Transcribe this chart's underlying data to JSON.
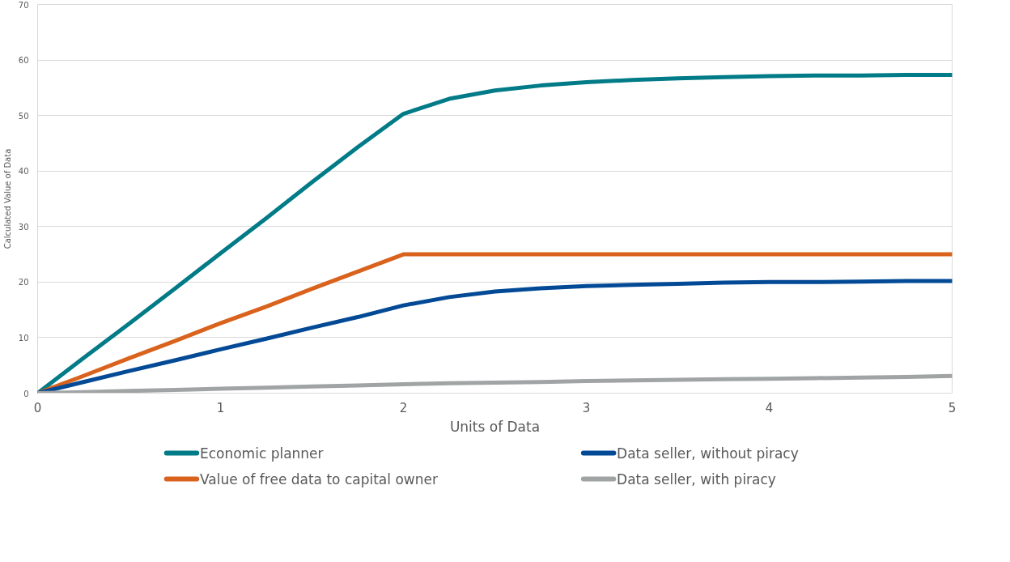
{
  "chart_data": {
    "type": "line",
    "xlabel": "Units of Data",
    "ylabel": "Calculated Value of Data",
    "x": [
      0,
      0.25,
      0.5,
      0.75,
      1,
      1.25,
      1.5,
      1.75,
      2,
      2.25,
      2.5,
      2.75,
      3,
      3.25,
      3.5,
      3.75,
      4,
      4.25,
      4.5,
      4.75,
      5
    ],
    "xlim": [
      0,
      5
    ],
    "xticks": [
      0,
      1,
      2,
      3,
      4,
      5
    ],
    "ylim": [
      0,
      70
    ],
    "yticks": [
      0,
      10,
      20,
      30,
      40,
      50,
      60,
      70
    ],
    "grid": "y",
    "legend": "bottom",
    "line_style": "solid",
    "series": [
      {
        "name": "Economic planner",
        "color": "#007b87",
        "values": [
          0,
          6.3,
          12.5,
          18.8,
          25.2,
          31.5,
          38,
          44.3,
          50.3,
          53,
          54.5,
          55.4,
          56,
          56.4,
          56.7,
          56.9,
          57.1,
          57.2,
          57.2,
          57.3,
          57.3
        ]
      },
      {
        "name": "Value of free data to capital owner",
        "color": "#d9621c",
        "values": [
          0,
          3.1,
          6.3,
          9.4,
          12.6,
          15.6,
          18.8,
          21.9,
          25,
          25,
          25,
          25,
          25,
          25,
          25,
          25,
          25,
          25,
          25,
          25,
          25
        ]
      },
      {
        "name": "Data seller, without piracy",
        "color": "#034a96",
        "values": [
          0,
          2,
          4,
          5.9,
          7.9,
          9.8,
          11.8,
          13.7,
          15.8,
          17.3,
          18.3,
          18.9,
          19.3,
          19.5,
          19.7,
          19.9,
          20,
          20,
          20.1,
          20.2,
          20.2
        ]
      },
      {
        "name": "Data seller, with piracy",
        "color": "#a0a4a4",
        "values": [
          0,
          0.2,
          0.4,
          0.6,
          0.8,
          1,
          1.2,
          1.4,
          1.6,
          1.8,
          1.9,
          2,
          2.2,
          2.3,
          2.4,
          2.5,
          2.6,
          2.7,
          2.8,
          2.9,
          3.1
        ]
      }
    ]
  }
}
